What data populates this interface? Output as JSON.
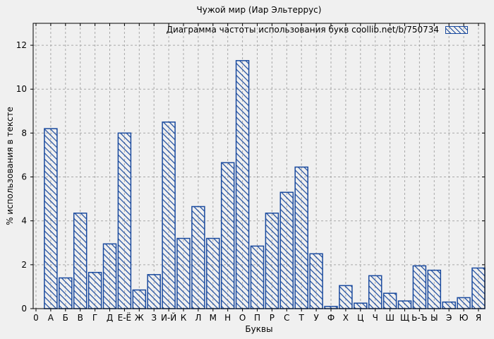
{
  "figure": {
    "background": "#f0f0f0",
    "grid_color": "#a8a8a8",
    "axis_color": "#000000"
  },
  "chart_data": {
    "type": "bar",
    "title": "Чужой мир (Иар Эльтеррус)",
    "legend": "Диаграмма частоты использования букв coollib.net/b/750734",
    "legend_position": "top-right",
    "xlabel": "Буквы",
    "ylabel": "% использования в тексте",
    "x_origin_label": "0",
    "categories": [
      "А",
      "Б",
      "В",
      "Г",
      "Д",
      "Е-Ё",
      "Ж",
      "З",
      "И-Й",
      "К",
      "Л",
      "М",
      "Н",
      "О",
      "П",
      "Р",
      "С",
      "Т",
      "У",
      "Ф",
      "Х",
      "Ц",
      "Ч",
      "Ш",
      "Щ",
      "Ь-Ъ",
      "Ы",
      "Э",
      "Ю",
      "Я"
    ],
    "values": [
      8.2,
      1.4,
      4.35,
      1.65,
      2.95,
      8.0,
      0.85,
      1.55,
      8.5,
      3.2,
      4.65,
      3.2,
      6.65,
      11.3,
      2.85,
      4.35,
      5.3,
      6.45,
      2.5,
      0.1,
      1.05,
      0.25,
      1.5,
      0.7,
      0.35,
      1.95,
      1.75,
      0.3,
      0.5,
      1.85
    ],
    "yticks": [
      0,
      2,
      4,
      6,
      8,
      10,
      12
    ],
    "ylim": [
      0,
      13
    ],
    "grid": true,
    "grid_style": "dashed",
    "bar_color": "#1a4a9e",
    "hatch": "diagonal-backslash"
  }
}
